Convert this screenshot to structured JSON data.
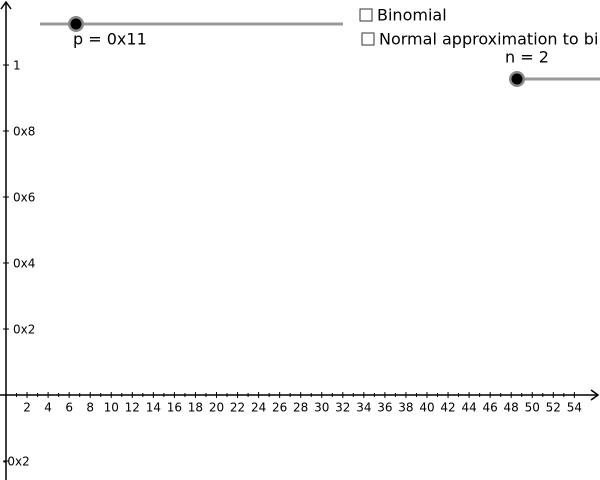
{
  "sliders": [
    {
      "label": "p = 0x11"
    },
    {
      "label": "n = 2"
    }
  ],
  "checkboxes": [
    {
      "label": "Binomial"
    },
    {
      "label": "Normal approximation to bi"
    }
  ],
  "x_axis": {
    "labels": [
      "2",
      "4",
      "6",
      "8",
      "10",
      "12",
      "14",
      "16",
      "18",
      "20",
      "22",
      "24",
      "26",
      "28",
      "30",
      "32",
      "34",
      "36",
      "38",
      "40",
      "42",
      "44",
      "46",
      "48",
      "50",
      "52",
      "54"
    ]
  },
  "y_axis": {
    "labels": [
      "1",
      "0x8",
      "0x6",
      "0x4",
      "0x2"
    ],
    "negative_label": "-0x2"
  }
}
